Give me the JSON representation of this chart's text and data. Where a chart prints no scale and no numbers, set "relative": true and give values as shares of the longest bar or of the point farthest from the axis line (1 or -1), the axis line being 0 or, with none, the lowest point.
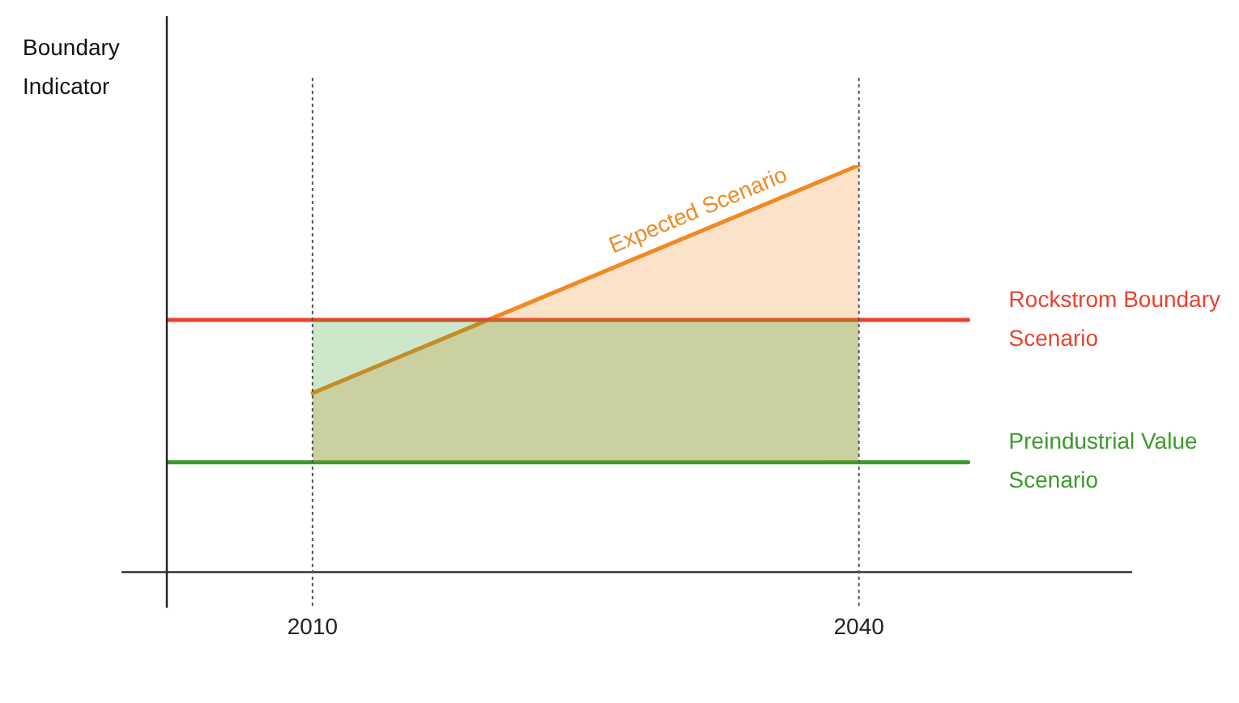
{
  "chart_data": {
    "type": "line",
    "ylabel": "Boundary Indicator",
    "relative": true,
    "xlim": [
      2002,
      2055
    ],
    "xticks": [
      2010,
      2040
    ],
    "grid": false,
    "legend": false,
    "marker": "none",
    "ref_lines": [
      {
        "axis": "x",
        "value": 2010,
        "color": "#555555",
        "line_style": "dotted"
      },
      {
        "axis": "x",
        "value": 2040,
        "color": "#555555",
        "line_style": "dotted"
      }
    ],
    "series": [
      {
        "name": "Rockstrom Boundary Scenario",
        "color": "#e8432e",
        "x": [
          2002,
          2046
        ],
        "values": [
          0.62,
          0.62
        ]
      },
      {
        "name": "Preindustrial Value Scenario",
        "color": "#3a9a2a",
        "x": [
          2002,
          2010,
          2040,
          2046
        ],
        "values": [
          0.27,
          0.27,
          0.27,
          0.27
        ],
        "lower": [
          null,
          0.27,
          0.27,
          null
        ],
        "upper": [
          null,
          0.62,
          0.62,
          null
        ]
      },
      {
        "name": "Expected Scenario",
        "color": "#f08a24",
        "x": [
          2010,
          2040
        ],
        "values": [
          0.44,
          1
        ],
        "lower": [
          0.27,
          0.27
        ],
        "upper": [
          0.44,
          1
        ]
      }
    ]
  }
}
